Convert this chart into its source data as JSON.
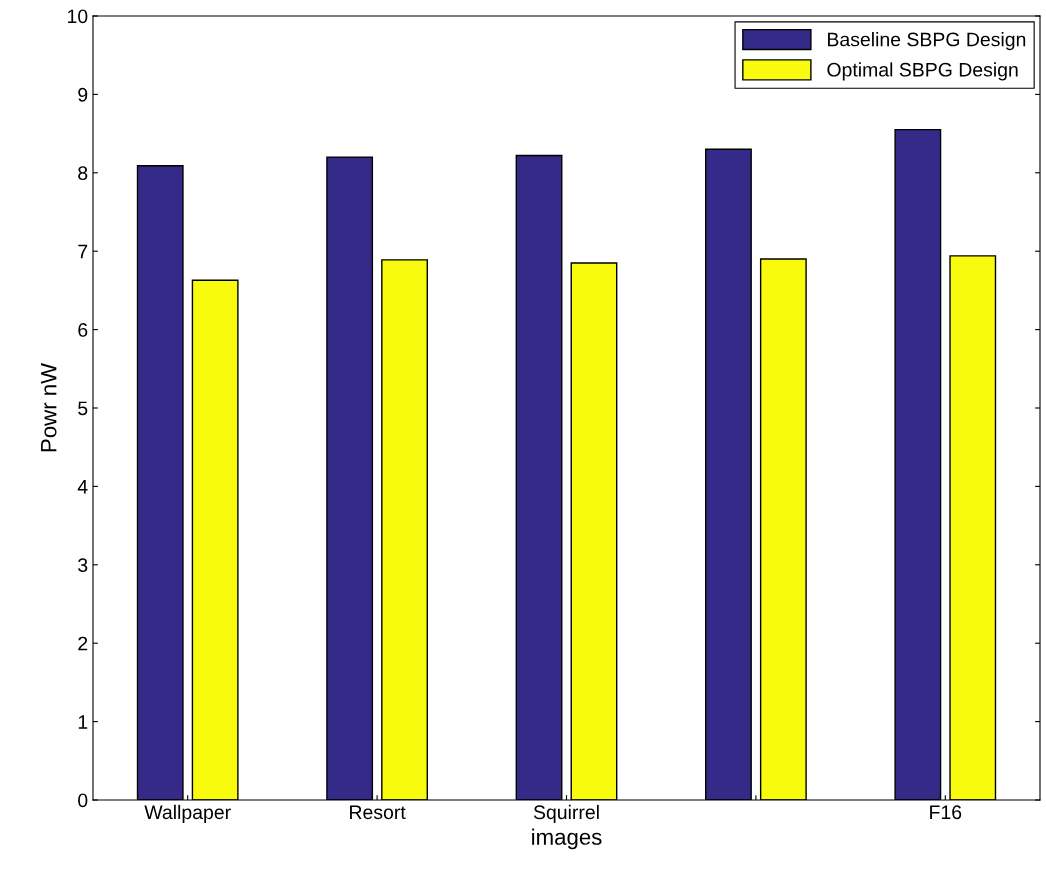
{
  "chart_data": {
    "type": "bar",
    "xlabel": "images",
    "ylabel": "Powr nW",
    "categories": [
      "Wallpaper",
      "Resort",
      "Squirrel",
      null,
      "F16"
    ],
    "series": [
      {
        "name": "Baseline SBPG Design",
        "color": "#352a87",
        "values": [
          8.09,
          8.2,
          8.22,
          8.3,
          8.55
        ]
      },
      {
        "name": "Optimal SBPG Design",
        "color": "#f9fb0e",
        "values": [
          6.63,
          6.89,
          6.85,
          6.9,
          6.94
        ]
      }
    ],
    "ylim": [
      0,
      10
    ],
    "yticks": [
      0,
      1,
      2,
      3,
      4,
      5,
      6,
      7,
      8,
      9,
      10
    ],
    "grid": false,
    "legend": "top right"
  }
}
